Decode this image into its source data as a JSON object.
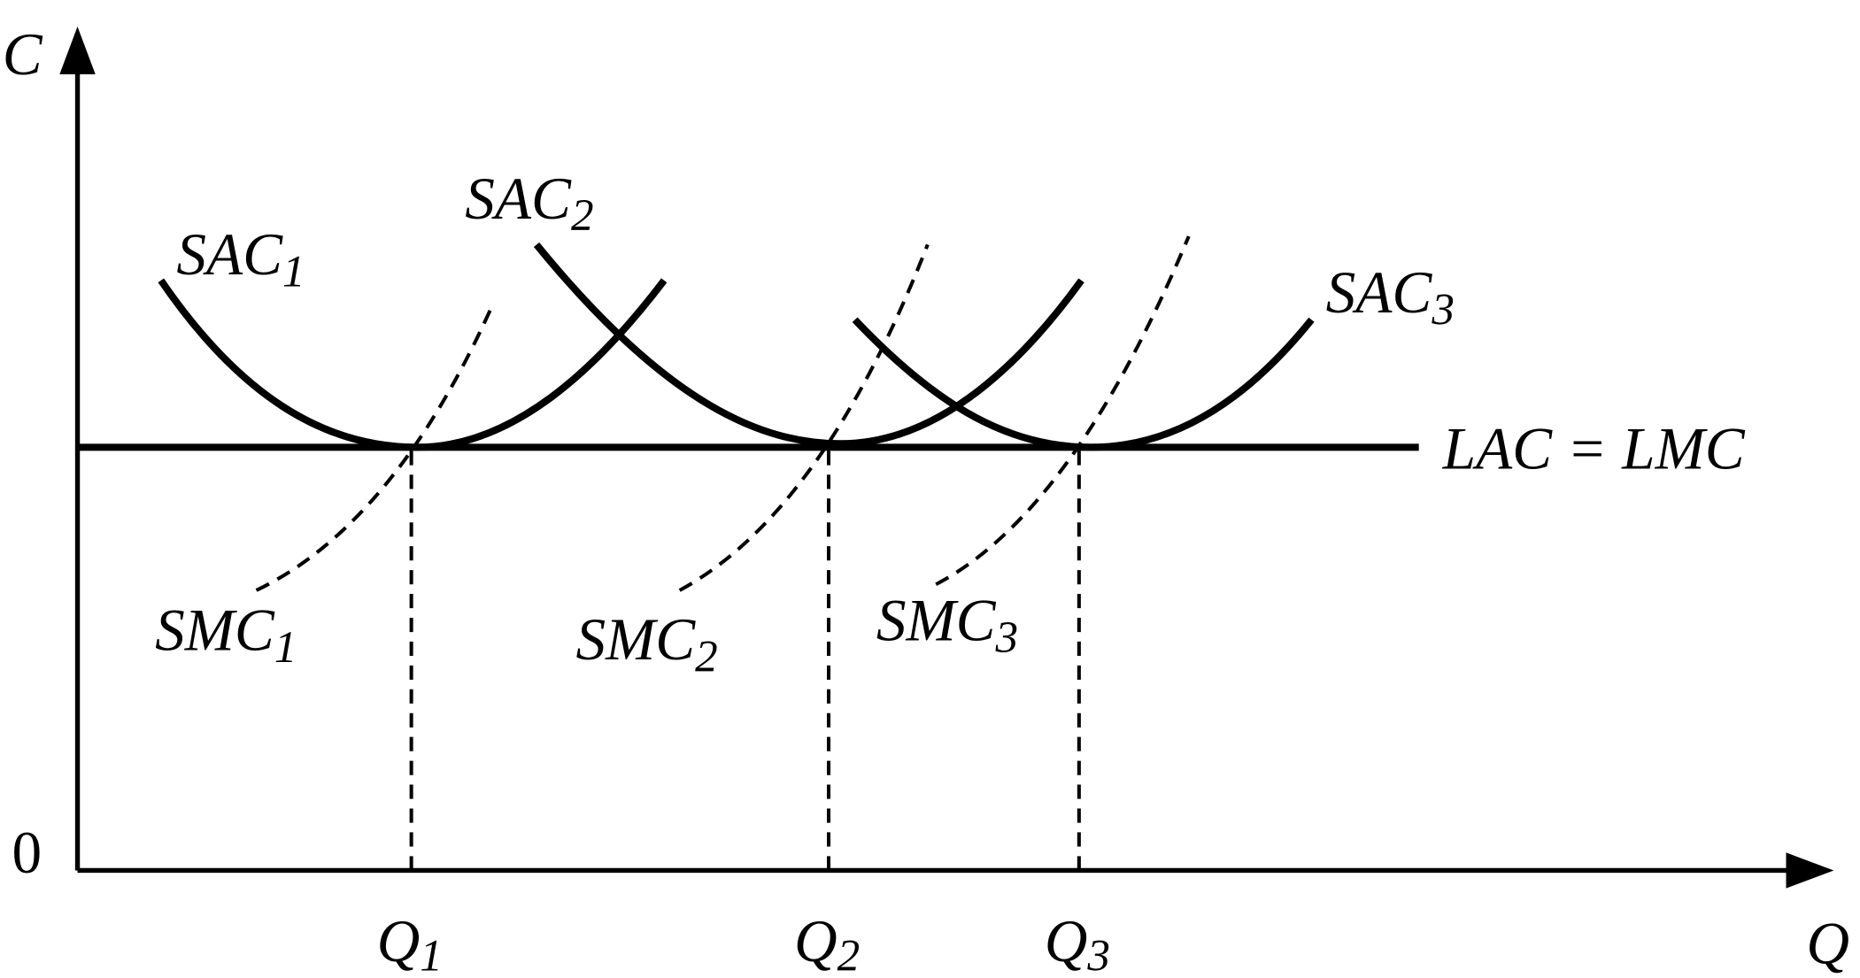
{
  "axes": {
    "y_label": "C",
    "x_label": "Q",
    "origin": "0"
  },
  "quantities": [
    {
      "text": "Q",
      "sub": "1"
    },
    {
      "text": "Q",
      "sub": "2"
    },
    {
      "text": "Q",
      "sub": "3"
    }
  ],
  "curves": {
    "sac": [
      {
        "text": "SAC",
        "sub": "1"
      },
      {
        "text": "SAC",
        "sub": "2"
      },
      {
        "text": "SAC",
        "sub": "3"
      }
    ],
    "smc": [
      {
        "text": "SMC",
        "sub": "1"
      },
      {
        "text": "SMC",
        "sub": "2"
      },
      {
        "text": "SMC",
        "sub": "3"
      }
    ],
    "lac": "LAC = LMC"
  }
}
